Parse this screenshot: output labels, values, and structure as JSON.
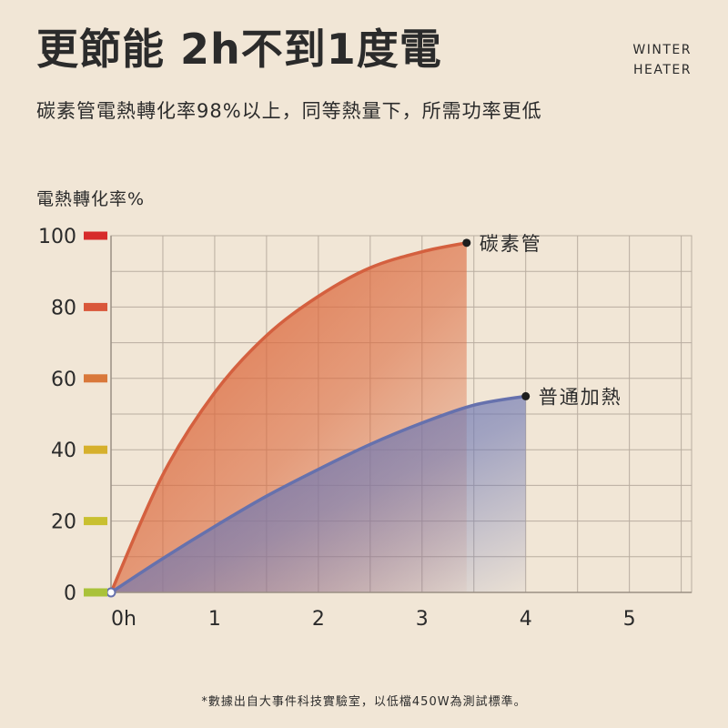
{
  "header": {
    "title": "更節能 2h不到1度電",
    "brand_line1": "WINTER",
    "brand_line2": "HEATER",
    "subtitle": "碳素管電熱轉化率98%以上，同等熱量下，所需功率更低"
  },
  "footnote": "*數據出自大事件科技實驗室，以低檔450W為測試標準。",
  "chart_data": {
    "type": "area",
    "ylabel": "電熱轉化率%",
    "xlabel": "",
    "x_ticks": [
      {
        "value": 0,
        "label": "0h"
      },
      {
        "value": 1,
        "label": "1"
      },
      {
        "value": 2,
        "label": "2"
      },
      {
        "value": 3,
        "label": "3"
      },
      {
        "value": 4,
        "label": "4"
      },
      {
        "value": 5,
        "label": "5"
      }
    ],
    "y_ticks": [
      {
        "value": 0,
        "label": "0",
        "color": "#a9c23a"
      },
      {
        "value": 20,
        "label": "20",
        "color": "#c9c030"
      },
      {
        "value": 40,
        "label": "40",
        "color": "#d6b02c"
      },
      {
        "value": 60,
        "label": "60",
        "color": "#d9783a"
      },
      {
        "value": 80,
        "label": "80",
        "color": "#d9573a"
      },
      {
        "value": 100,
        "label": "100",
        "color": "#d72b2b"
      }
    ],
    "xlim": [
      0,
      5.6
    ],
    "ylim": [
      0,
      100
    ],
    "grid": true,
    "series": [
      {
        "name": "碳素管",
        "color": "#d4603f",
        "fill_color": "#dc6a3e",
        "points": [
          [
            0,
            0
          ],
          [
            0.5,
            33
          ],
          [
            1,
            56
          ],
          [
            1.5,
            72
          ],
          [
            2,
            83
          ],
          [
            2.5,
            91
          ],
          [
            3,
            95.5
          ],
          [
            3.43,
            98
          ]
        ]
      },
      {
        "name": "普通加熱",
        "color": "#6671ad",
        "fill_color": "#6c76b3",
        "points": [
          [
            0,
            0
          ],
          [
            0.5,
            9.5
          ],
          [
            1,
            18.5
          ],
          [
            1.5,
            27
          ],
          [
            2,
            34.5
          ],
          [
            2.5,
            41.5
          ],
          [
            3,
            47.5
          ],
          [
            3.5,
            52.5
          ],
          [
            4,
            55
          ]
        ]
      }
    ]
  }
}
